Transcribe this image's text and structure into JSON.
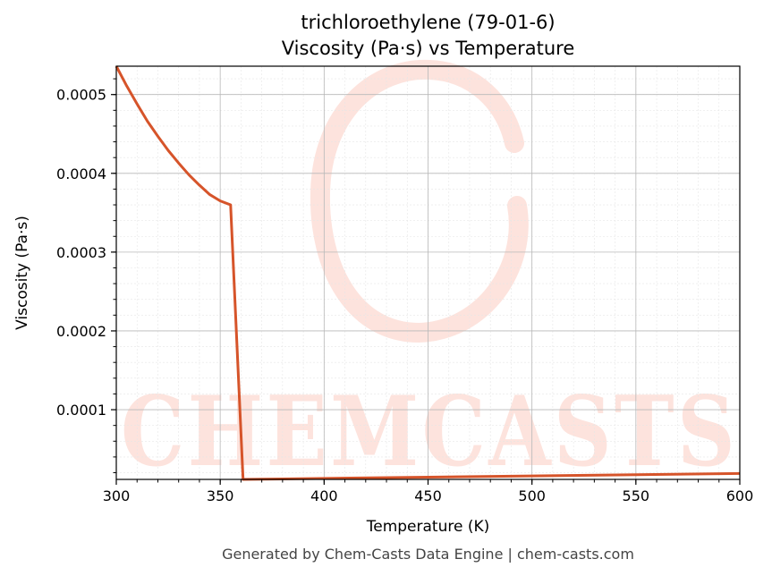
{
  "chart_data": {
    "type": "line",
    "title": "trichloroethylene (79-01-6)",
    "subtitle": "Viscosity (Pa·s) vs Temperature",
    "xlabel": "Temperature (K)",
    "ylabel": "Viscosity (Pa·s)",
    "xlim": [
      300,
      600
    ],
    "ylim": [
      1.15e-05,
      0.000536
    ],
    "xticks": [
      300,
      350,
      400,
      450,
      500,
      550,
      600
    ],
    "yticks": [
      0.0001,
      0.0002,
      0.0003,
      0.0004,
      0.0005
    ],
    "xtick_labels": [
      "300",
      "350",
      "400",
      "450",
      "500",
      "550",
      "600"
    ],
    "ytick_labels": [
      "0.0001",
      "0.0002",
      "0.0003",
      "0.0004",
      "0.0005"
    ],
    "grid": true,
    "series": [
      {
        "color": "#d6542a",
        "x": [
          300,
          305,
          310,
          315,
          320,
          325,
          330,
          335,
          340,
          345,
          350,
          355,
          361,
          370,
          380,
          400,
          450,
          500,
          550,
          600
        ],
        "y": [
          0.000536,
          0.000511,
          0.000488,
          0.000466,
          0.000447,
          0.000429,
          0.000413,
          0.000398,
          0.000385,
          0.000373,
          0.000365,
          0.00036,
          1.15e-05,
          1.18e-05,
          1.21e-05,
          1.28e-05,
          1.43e-05,
          1.59e-05,
          1.74e-05,
          1.9e-05
        ]
      }
    ]
  },
  "watermark": {
    "text": "CHEMCASTS",
    "color": "#fde3dd"
  },
  "footer": "Generated by Chem-Casts Data Engine | chem-casts.com"
}
